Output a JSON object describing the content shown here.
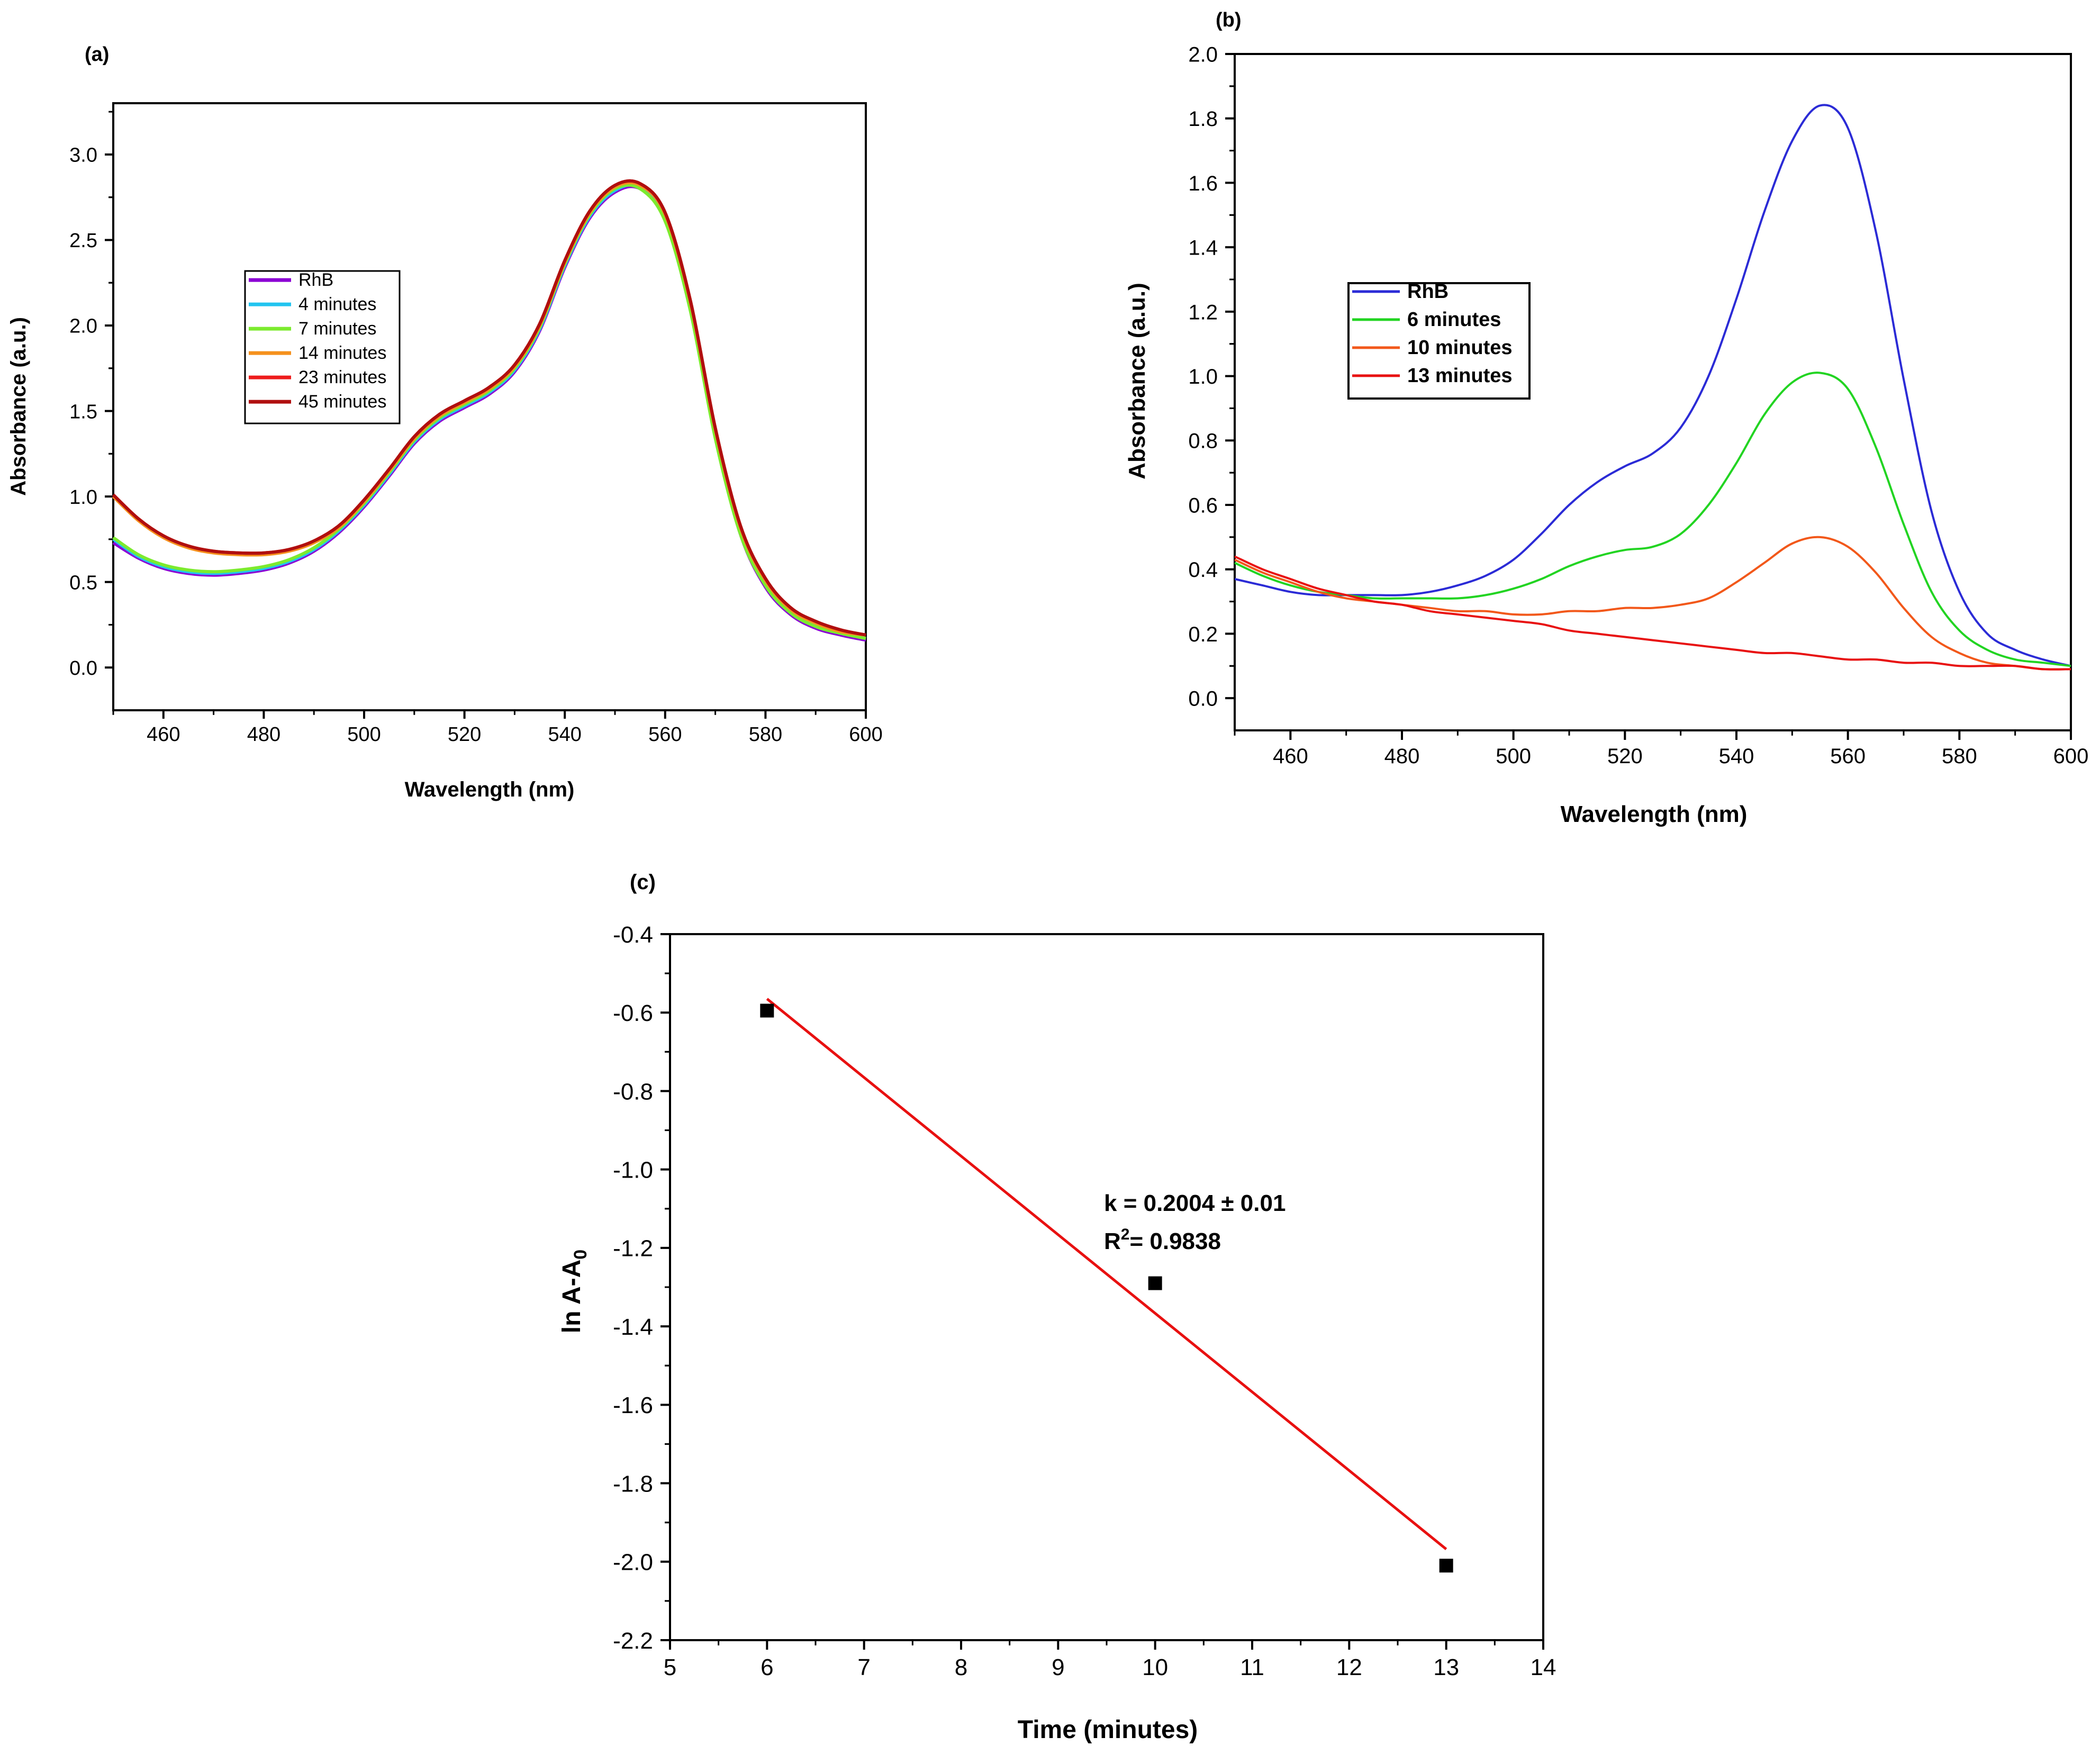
{
  "chart_data": [
    {
      "id": "a",
      "type": "line",
      "panel_label": "(a)",
      "xlabel": "Wavelength (nm)",
      "ylabel": "Absorbance (a.u.)",
      "xlim": [
        450,
        600
      ],
      "ylim": [
        -0.25,
        3.3
      ],
      "xticks": [
        460,
        480,
        500,
        520,
        540,
        560,
        580,
        600
      ],
      "yticks": [
        0.0,
        0.5,
        1.0,
        1.5,
        2.0,
        2.5,
        3.0
      ],
      "ytick_labels": [
        "0.0",
        "0.5",
        "1.0",
        "1.5",
        "2.0",
        "2.5",
        "3.0"
      ],
      "legend_position": "center-left",
      "x": [
        450,
        455,
        460,
        465,
        470,
        475,
        480,
        485,
        490,
        495,
        500,
        505,
        510,
        515,
        520,
        525,
        530,
        535,
        540,
        545,
        550,
        555,
        560,
        565,
        570,
        575,
        580,
        585,
        590,
        595,
        600
      ],
      "series": [
        {
          "name": "RhB",
          "color": "#8B00D4",
          "values": [
            0.73,
            0.64,
            0.58,
            0.55,
            0.54,
            0.55,
            0.57,
            0.61,
            0.68,
            0.79,
            0.94,
            1.12,
            1.31,
            1.44,
            1.52,
            1.6,
            1.73,
            1.97,
            2.34,
            2.63,
            2.78,
            2.8,
            2.62,
            2.1,
            1.35,
            0.78,
            0.47,
            0.31,
            0.23,
            0.19,
            0.16
          ]
        },
        {
          "name": "4 minutes",
          "color": "#21C4F0",
          "values": [
            0.75,
            0.65,
            0.59,
            0.56,
            0.55,
            0.56,
            0.58,
            0.62,
            0.69,
            0.8,
            0.95,
            1.13,
            1.32,
            1.45,
            1.53,
            1.61,
            1.74,
            1.98,
            2.35,
            2.64,
            2.79,
            2.81,
            2.63,
            2.11,
            1.36,
            0.79,
            0.48,
            0.32,
            0.24,
            0.2,
            0.17
          ]
        },
        {
          "name": "7 minutes",
          "color": "#7CEB2E",
          "values": [
            0.76,
            0.66,
            0.6,
            0.57,
            0.56,
            0.57,
            0.59,
            0.63,
            0.7,
            0.81,
            0.96,
            1.14,
            1.33,
            1.46,
            1.54,
            1.62,
            1.75,
            1.99,
            2.36,
            2.65,
            2.8,
            2.8,
            2.61,
            2.09,
            1.34,
            0.78,
            0.48,
            0.32,
            0.24,
            0.2,
            0.17
          ]
        },
        {
          "name": "14 minutes",
          "color": "#F5911E",
          "values": [
            1.0,
            0.86,
            0.76,
            0.7,
            0.67,
            0.66,
            0.66,
            0.68,
            0.73,
            0.82,
            0.97,
            1.15,
            1.34,
            1.47,
            1.55,
            1.63,
            1.76,
            2.0,
            2.37,
            2.66,
            2.81,
            2.82,
            2.65,
            2.14,
            1.39,
            0.82,
            0.51,
            0.34,
            0.26,
            0.21,
            0.19
          ]
        },
        {
          "name": "23 minutes",
          "color": "#EE1C1C",
          "values": [
            1.01,
            0.87,
            0.77,
            0.71,
            0.68,
            0.67,
            0.67,
            0.69,
            0.74,
            0.83,
            0.98,
            1.16,
            1.35,
            1.48,
            1.56,
            1.64,
            1.77,
            2.01,
            2.38,
            2.67,
            2.82,
            2.83,
            2.66,
            2.15,
            1.4,
            0.83,
            0.52,
            0.35,
            0.27,
            0.22,
            0.19
          ]
        },
        {
          "name": "45 minutes",
          "color": "#B00F0F",
          "values": [
            1.01,
            0.87,
            0.77,
            0.71,
            0.68,
            0.67,
            0.67,
            0.69,
            0.74,
            0.83,
            0.98,
            1.16,
            1.35,
            1.48,
            1.56,
            1.64,
            1.77,
            2.01,
            2.38,
            2.67,
            2.82,
            2.83,
            2.66,
            2.15,
            1.4,
            0.83,
            0.52,
            0.35,
            0.27,
            0.22,
            0.19
          ]
        }
      ]
    },
    {
      "id": "b",
      "type": "line",
      "panel_label": "(b)",
      "xlabel": "Wavelength (nm)",
      "ylabel": "Absorbance (a.u.)",
      "xlim": [
        450,
        600
      ],
      "ylim": [
        -0.1,
        2.0
      ],
      "xticks": [
        460,
        480,
        500,
        520,
        540,
        560,
        580,
        600
      ],
      "yticks": [
        0.0,
        0.2,
        0.4,
        0.6,
        0.8,
        1.0,
        1.2,
        1.4,
        1.6,
        1.8,
        2.0
      ],
      "ytick_labels": [
        "0.0",
        "0.2",
        "0.4",
        "0.6",
        "0.8",
        "1.0",
        "1.2",
        "1.4",
        "1.6",
        "1.8",
        "2.0"
      ],
      "legend_position": "center-left",
      "x": [
        450,
        455,
        460,
        465,
        470,
        475,
        480,
        485,
        490,
        495,
        500,
        505,
        510,
        515,
        520,
        525,
        530,
        535,
        540,
        545,
        550,
        555,
        560,
        565,
        570,
        575,
        580,
        585,
        590,
        595,
        600
      ],
      "series": [
        {
          "name": "RhB",
          "color": "#2B2BD6",
          "values": [
            0.37,
            0.35,
            0.33,
            0.32,
            0.32,
            0.32,
            0.32,
            0.33,
            0.35,
            0.38,
            0.43,
            0.51,
            0.6,
            0.67,
            0.72,
            0.76,
            0.84,
            1.0,
            1.24,
            1.51,
            1.73,
            1.84,
            1.77,
            1.45,
            0.99,
            0.58,
            0.33,
            0.2,
            0.15,
            0.12,
            0.1
          ]
        },
        {
          "name": "6 minutes",
          "color": "#22D422",
          "values": [
            0.42,
            0.38,
            0.35,
            0.33,
            0.32,
            0.31,
            0.31,
            0.31,
            0.31,
            0.32,
            0.34,
            0.37,
            0.41,
            0.44,
            0.46,
            0.47,
            0.51,
            0.6,
            0.73,
            0.88,
            0.98,
            1.01,
            0.96,
            0.78,
            0.54,
            0.33,
            0.21,
            0.15,
            0.12,
            0.11,
            0.1
          ]
        },
        {
          "name": "10 minutes",
          "color": "#F2581A",
          "values": [
            0.43,
            0.39,
            0.36,
            0.33,
            0.31,
            0.3,
            0.29,
            0.28,
            0.27,
            0.27,
            0.26,
            0.26,
            0.27,
            0.27,
            0.28,
            0.28,
            0.29,
            0.31,
            0.36,
            0.42,
            0.48,
            0.5,
            0.47,
            0.39,
            0.28,
            0.19,
            0.14,
            0.11,
            0.1,
            0.09,
            0.09
          ]
        },
        {
          "name": "13 minutes",
          "color": "#E81010",
          "values": [
            0.44,
            0.4,
            0.37,
            0.34,
            0.32,
            0.3,
            0.29,
            0.27,
            0.26,
            0.25,
            0.24,
            0.23,
            0.21,
            0.2,
            0.19,
            0.18,
            0.17,
            0.16,
            0.15,
            0.14,
            0.14,
            0.13,
            0.12,
            0.12,
            0.11,
            0.11,
            0.1,
            0.1,
            0.1,
            0.09,
            0.09
          ]
        }
      ]
    },
    {
      "id": "c",
      "type": "scatter",
      "panel_label": "(c)",
      "xlabel": "Time (minutes)",
      "ylabel_main": "ln A-A",
      "ylabel_sub": "0",
      "xlim": [
        5,
        14
      ],
      "ylim": [
        -2.2,
        -0.4
      ],
      "xticks": [
        5,
        6,
        7,
        8,
        9,
        10,
        11,
        12,
        13,
        14
      ],
      "yticks": [
        -2.2,
        -2.0,
        -1.8,
        -1.6,
        -1.4,
        -1.2,
        -1.0,
        -0.8,
        -0.6,
        -0.4
      ],
      "ytick_labels": [
        "-2.2",
        "-2.0",
        "-1.8",
        "-1.6",
        "-1.4",
        "-1.2",
        "-1.0",
        "-0.8",
        "-0.6",
        "-0.4"
      ],
      "points": [
        {
          "x": 6,
          "y": -0.595
        },
        {
          "x": 10,
          "y": -1.29
        },
        {
          "x": 13,
          "y": -2.01
        }
      ],
      "point_color": "#000000",
      "fit": {
        "color": "#E81010",
        "x": [
          6,
          13
        ],
        "y": [
          -0.565,
          -1.968
        ]
      },
      "annotation_k": "k = 0.2004 ± 0.01",
      "annotation_r_base": "R",
      "annotation_r_sup": "2",
      "annotation_r_rest": "= 0.9838"
    }
  ]
}
